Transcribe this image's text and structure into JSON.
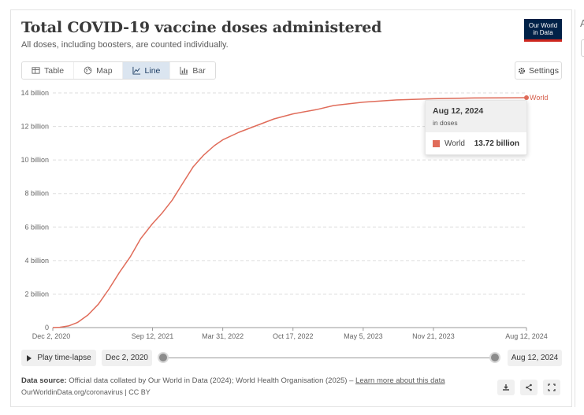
{
  "header": {
    "title": "Total COVID-19 vaccine doses administered",
    "subtitle": "All doses, including boosters, are counted individually.",
    "logo_line1": "Our World",
    "logo_line2": "in Data"
  },
  "side_panel": {
    "letter": "A"
  },
  "tabs": [
    {
      "label": "Table",
      "icon": "table-icon"
    },
    {
      "label": "Map",
      "icon": "globe-icon"
    },
    {
      "label": "Line",
      "icon": "line-chart-icon",
      "active": true
    },
    {
      "label": "Bar",
      "icon": "bar-chart-icon"
    }
  ],
  "settings_label": "Settings",
  "tooltip": {
    "date": "Aug 12, 2024",
    "unit": "in doses",
    "entity": "World",
    "value": "13.72 billion"
  },
  "timeline": {
    "play_label": "Play time-lapse",
    "start_date": "Dec 2, 2020",
    "end_date": "Aug 12, 2024"
  },
  "source": {
    "label": "Data source:",
    "text": "Official data collated by Our World in Data (2024); World Health Organisation (2025) –",
    "link": "Learn more about this data",
    "url_line": "OurWorldinData.org/coronavirus | CC BY"
  },
  "colors": {
    "series": "#e06c5a",
    "series_label": "#d55e4b",
    "active_tab": "#dbe5f0",
    "logo_bg": "#002147",
    "logo_accent": "#ce261e"
  },
  "chart_data": {
    "type": "line",
    "title": "Total COVID-19 vaccine doses administered",
    "xlabel": "",
    "ylabel": "",
    "ylim": [
      0,
      14
    ],
    "x_range_days": [
      0,
      1349
    ],
    "y_ticks": [
      {
        "value": 0,
        "label": "0"
      },
      {
        "value": 2,
        "label": "2 billion"
      },
      {
        "value": 4,
        "label": "4 billion"
      },
      {
        "value": 6,
        "label": "6 billion"
      },
      {
        "value": 8,
        "label": "8 billion"
      },
      {
        "value": 10,
        "label": "10 billion"
      },
      {
        "value": 12,
        "label": "12 billion"
      },
      {
        "value": 14,
        "label": "14 billion"
      }
    ],
    "x_ticks": [
      {
        "day": 0,
        "label": "Dec 2, 2020"
      },
      {
        "day": 284,
        "label": "Sep 12, 2021"
      },
      {
        "day": 484,
        "label": "Mar 31, 2022"
      },
      {
        "day": 684,
        "label": "Oct 17, 2022"
      },
      {
        "day": 884,
        "label": "May 5, 2023"
      },
      {
        "day": 1084,
        "label": "Nov 21, 2023"
      },
      {
        "day": 1349,
        "label": "Aug 12, 2024"
      }
    ],
    "series": [
      {
        "name": "World",
        "unit": "billion doses",
        "points": [
          {
            "day": 0,
            "value": 0
          },
          {
            "day": 20,
            "value": 0.02
          },
          {
            "day": 45,
            "value": 0.1
          },
          {
            "day": 70,
            "value": 0.3
          },
          {
            "day": 100,
            "value": 0.75
          },
          {
            "day": 130,
            "value": 1.4
          },
          {
            "day": 160,
            "value": 2.3
          },
          {
            "day": 190,
            "value": 3.3
          },
          {
            "day": 220,
            "value": 4.2
          },
          {
            "day": 250,
            "value": 5.3
          },
          {
            "day": 284,
            "value": 6.2
          },
          {
            "day": 310,
            "value": 6.8
          },
          {
            "day": 340,
            "value": 7.6
          },
          {
            "day": 370,
            "value": 8.6
          },
          {
            "day": 400,
            "value": 9.6
          },
          {
            "day": 430,
            "value": 10.3
          },
          {
            "day": 460,
            "value": 10.85
          },
          {
            "day": 484,
            "value": 11.2
          },
          {
            "day": 530,
            "value": 11.65
          },
          {
            "day": 580,
            "value": 12.05
          },
          {
            "day": 630,
            "value": 12.45
          },
          {
            "day": 684,
            "value": 12.75
          },
          {
            "day": 750,
            "value": 13.0
          },
          {
            "day": 800,
            "value": 13.25
          },
          {
            "day": 884,
            "value": 13.45
          },
          {
            "day": 980,
            "value": 13.58
          },
          {
            "day": 1084,
            "value": 13.65
          },
          {
            "day": 1200,
            "value": 13.7
          },
          {
            "day": 1349,
            "value": 13.72
          }
        ]
      }
    ],
    "end_label": "World",
    "gridlines": "horizontal-dashed"
  }
}
